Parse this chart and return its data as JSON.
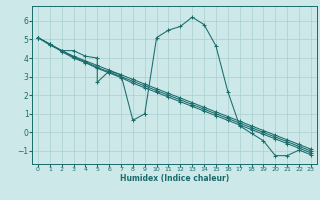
{
  "xlabel": "Humidex (Indice chaleur)",
  "xlim": [
    -0.5,
    23.5
  ],
  "ylim": [
    -1.7,
    6.8
  ],
  "yticks": [
    -1,
    0,
    1,
    2,
    3,
    4,
    5,
    6
  ],
  "xticks": [
    0,
    1,
    2,
    3,
    4,
    5,
    6,
    7,
    8,
    9,
    10,
    11,
    12,
    13,
    14,
    15,
    16,
    17,
    18,
    19,
    20,
    21,
    22,
    23
  ],
  "bg_color": "#cce8e8",
  "line_color": "#1a6b6b",
  "grid_color": "#aacfcf",
  "lines": [
    {
      "x": [
        0,
        1,
        2,
        3,
        4,
        5,
        5,
        6,
        7,
        8,
        9,
        10,
        11,
        12,
        13,
        14,
        15,
        16,
        17,
        18,
        19,
        20,
        21,
        22,
        23
      ],
      "y": [
        5.1,
        4.7,
        4.4,
        4.4,
        4.1,
        4.0,
        2.7,
        3.3,
        3.1,
        0.65,
        1.0,
        5.1,
        5.5,
        5.7,
        6.2,
        5.8,
        4.65,
        2.2,
        0.35,
        -0.05,
        -0.45,
        -1.25,
        -1.25,
        -0.95,
        -1.2
      ]
    },
    {
      "x": [
        0,
        1,
        2,
        3,
        4,
        5,
        6,
        7,
        8,
        9,
        10,
        11,
        12,
        13,
        14,
        15,
        16,
        17,
        18,
        19,
        20,
        21,
        22,
        23
      ],
      "y": [
        5.1,
        4.75,
        4.4,
        4.1,
        3.85,
        3.6,
        3.35,
        3.1,
        2.85,
        2.6,
        2.35,
        2.1,
        1.85,
        1.6,
        1.35,
        1.1,
        0.85,
        0.6,
        0.35,
        0.1,
        -0.15,
        -0.4,
        -0.65,
        -0.9
      ]
    },
    {
      "x": [
        0,
        1,
        2,
        3,
        4,
        5,
        6,
        7,
        8,
        9,
        10,
        11,
        12,
        13,
        14,
        15,
        16,
        17,
        18,
        19,
        20,
        21,
        22,
        23
      ],
      "y": [
        5.1,
        4.75,
        4.4,
        4.05,
        3.8,
        3.5,
        3.25,
        3.0,
        2.75,
        2.5,
        2.25,
        2.0,
        1.75,
        1.5,
        1.25,
        1.0,
        0.75,
        0.5,
        0.25,
        0.0,
        -0.25,
        -0.5,
        -0.75,
        -1.0
      ]
    },
    {
      "x": [
        0,
        1,
        2,
        3,
        4,
        5,
        6,
        7,
        8,
        9,
        10,
        11,
        12,
        13,
        14,
        15,
        16,
        17,
        18,
        19,
        20,
        21,
        22,
        23
      ],
      "y": [
        5.1,
        4.75,
        4.35,
        4.0,
        3.75,
        3.45,
        3.2,
        2.95,
        2.65,
        2.4,
        2.15,
        1.9,
        1.65,
        1.4,
        1.15,
        0.9,
        0.65,
        0.4,
        0.15,
        -0.1,
        -0.35,
        -0.6,
        -0.85,
        -1.1
      ]
    }
  ],
  "marker": "+"
}
